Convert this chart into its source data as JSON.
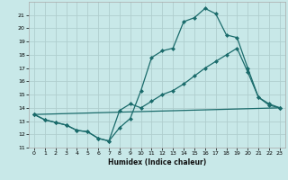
{
  "xlabel": "Humidex (Indice chaleur)",
  "xlim": [
    -0.5,
    23.5
  ],
  "ylim": [
    11,
    22
  ],
  "yticks": [
    11,
    12,
    13,
    14,
    15,
    16,
    17,
    18,
    19,
    20,
    21
  ],
  "xticks": [
    0,
    1,
    2,
    3,
    4,
    5,
    6,
    7,
    8,
    9,
    10,
    11,
    12,
    13,
    14,
    15,
    16,
    17,
    18,
    19,
    20,
    21,
    22,
    23
  ],
  "bg_color": "#c8e8e8",
  "grid_color": "#b0cece",
  "line_color": "#1a6b6b",
  "curve1_x": [
    0,
    1,
    2,
    3,
    4,
    5,
    6,
    7,
    8,
    9,
    10,
    11,
    12,
    13,
    14,
    15,
    16,
    17,
    18,
    19,
    20,
    21,
    22,
    23
  ],
  "curve1_y": [
    13.5,
    13.1,
    12.9,
    12.7,
    12.3,
    12.2,
    11.7,
    11.5,
    12.5,
    13.2,
    15.3,
    17.8,
    18.3,
    18.5,
    20.5,
    20.8,
    21.5,
    21.1,
    19.5,
    19.3,
    17.0,
    14.8,
    14.2,
    14.0
  ],
  "curve2_x": [
    0,
    1,
    2,
    3,
    4,
    5,
    6,
    7,
    8,
    9,
    10,
    11,
    12,
    13,
    14,
    15,
    16,
    17,
    18,
    19,
    20,
    21,
    22,
    23
  ],
  "curve2_y": [
    13.5,
    13.1,
    12.9,
    12.7,
    12.3,
    12.2,
    11.7,
    11.5,
    13.8,
    14.3,
    14.0,
    14.5,
    15.0,
    15.3,
    15.8,
    16.4,
    17.0,
    17.5,
    18.0,
    18.5,
    16.7,
    14.8,
    14.3,
    14.0
  ],
  "curve3_x": [
    0,
    23
  ],
  "curve3_y": [
    13.5,
    14.0
  ],
  "markersize": 2.5,
  "linewidth": 0.9
}
